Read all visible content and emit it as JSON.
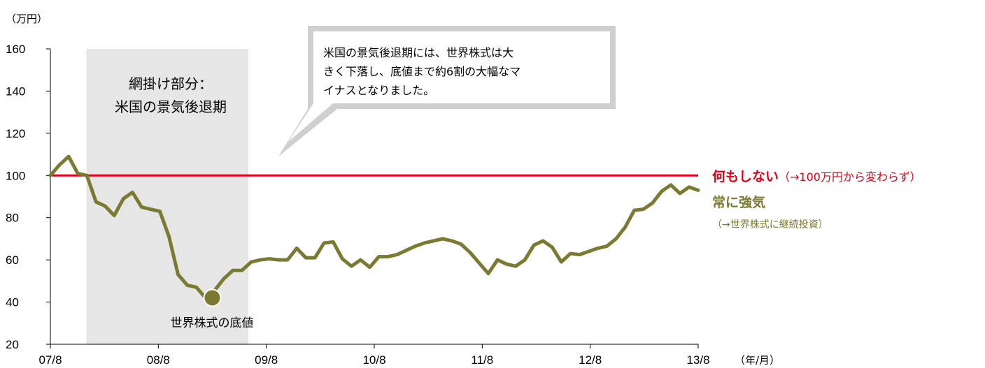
{
  "chart_data": {
    "type": "line",
    "ylabel": "（万円）",
    "xlabel": "（年/月）",
    "ylim": [
      20,
      160
    ],
    "yticks": [
      "20",
      "40",
      "60",
      "80",
      "100",
      "120",
      "140",
      "160"
    ],
    "xticks": [
      "07/8",
      "08/8",
      "09/8",
      "10/8",
      "11/8",
      "12/8",
      "13/8"
    ],
    "x_range_months": [
      0,
      72
    ],
    "shaded_region": {
      "label_line1": "網掛け部分：",
      "label_line2": "米国の景気後退期",
      "start_month": 4,
      "end_month": 22,
      "color": "#e6e6e6"
    },
    "callout": {
      "lines": [
        "米国の景気後退期には、世界株式は大",
        "きく下落し、底値まで約6割の大幅なマ",
        "イナスとなりました。"
      ]
    },
    "trough": {
      "label": "世界株式の底値",
      "month": 18,
      "value": 42
    },
    "series": [
      {
        "name": "何もしない",
        "note": "（→100万円から変わらず）",
        "color": "#e0001a",
        "values": [
          100,
          100
        ]
      },
      {
        "name": "常に強気",
        "note": "（→世界株式に継続投資）",
        "color": "#7a7a32",
        "values": [
          100,
          105,
          109,
          101,
          100,
          87.5,
          85.5,
          81,
          89,
          92,
          85,
          84,
          83,
          71,
          53,
          48,
          47,
          42,
          45.5,
          51,
          55,
          55,
          59,
          60,
          60.5,
          60,
          60,
          65.5,
          61,
          61,
          68,
          68.5,
          60.5,
          57,
          60,
          56.5,
          61.5,
          61.5,
          62.5,
          64.5,
          66.5,
          68,
          69,
          70,
          69,
          67.5,
          63.5,
          58.5,
          53.5,
          60,
          58,
          57,
          60,
          67,
          69,
          66,
          59,
          63,
          62.5,
          64,
          65.5,
          66.5,
          70,
          75.5,
          83.5,
          84,
          87,
          92.5,
          95.5,
          91.5,
          94.5,
          93
        ]
      }
    ]
  }
}
